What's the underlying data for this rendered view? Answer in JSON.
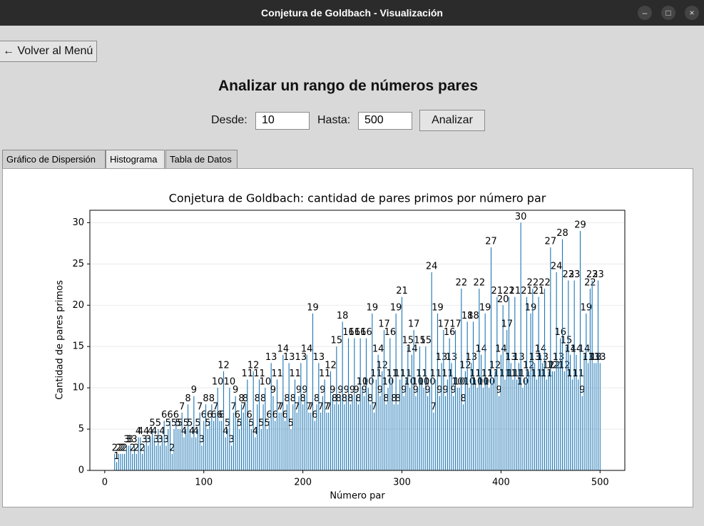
{
  "window": {
    "title": "Conjetura de Goldbach - Visualización"
  },
  "back_button": "← Volver al Menú",
  "heading": "Analizar un rango de números pares",
  "form": {
    "from_label": "Desde:",
    "from_value": "10",
    "to_label": "Hasta:",
    "to_value": "500",
    "button": "Analizar"
  },
  "tabs": [
    "Gráfico de Dispersión",
    "Histograma",
    "Tabla de Datos"
  ],
  "chart_data": {
    "type": "bar",
    "title": "Conjetura de Goldbach: cantidad de pares primos por número par",
    "xlabel": "Número par",
    "ylabel": "Cantidad de pares primos",
    "color": "#1f77b4",
    "grid": true,
    "xlim": [
      -15,
      525
    ],
    "xticks": [
      0,
      100,
      200,
      300,
      400,
      500
    ],
    "ylim": [
      0,
      31.5
    ],
    "yticks": [
      0,
      5,
      10,
      15,
      20,
      25,
      30
    ],
    "x": [
      10,
      12,
      14,
      16,
      18,
      20,
      22,
      24,
      26,
      28,
      30,
      32,
      34,
      36,
      38,
      40,
      42,
      44,
      46,
      48,
      50,
      52,
      54,
      56,
      58,
      60,
      62,
      64,
      66,
      68,
      70,
      72,
      74,
      76,
      78,
      80,
      82,
      84,
      86,
      88,
      90,
      92,
      94,
      96,
      98,
      100,
      102,
      104,
      106,
      108,
      110,
      112,
      114,
      116,
      118,
      120,
      122,
      124,
      126,
      128,
      130,
      132,
      134,
      136,
      138,
      140,
      142,
      144,
      146,
      148,
      150,
      152,
      154,
      156,
      158,
      160,
      162,
      164,
      166,
      168,
      170,
      172,
      174,
      176,
      178,
      180,
      182,
      184,
      186,
      188,
      190,
      192,
      194,
      196,
      198,
      200,
      202,
      204,
      206,
      208,
      210,
      212,
      214,
      216,
      218,
      220,
      222,
      224,
      226,
      228,
      230,
      232,
      234,
      236,
      238,
      240,
      242,
      244,
      246,
      248,
      250,
      252,
      254,
      256,
      258,
      260,
      262,
      264,
      266,
      268,
      270,
      272,
      274,
      276,
      278,
      280,
      282,
      284,
      286,
      288,
      290,
      292,
      294,
      296,
      298,
      300,
      302,
      304,
      306,
      308,
      310,
      312,
      314,
      316,
      318,
      320,
      322,
      324,
      326,
      328,
      330,
      332,
      334,
      336,
      338,
      340,
      342,
      344,
      346,
      348,
      350,
      352,
      354,
      356,
      358,
      360,
      362,
      364,
      366,
      368,
      370,
      372,
      374,
      376,
      378,
      380,
      382,
      384,
      386,
      388,
      390,
      392,
      394,
      396,
      398,
      400,
      402,
      404,
      406,
      408,
      410,
      412,
      414,
      416,
      418,
      420,
      422,
      424,
      426,
      428,
      430,
      432,
      434,
      436,
      438,
      440,
      442,
      444,
      446,
      448,
      450,
      452,
      454,
      456,
      458,
      460,
      462,
      464,
      466,
      468,
      470,
      472,
      474,
      476,
      478,
      480,
      482,
      484,
      486,
      488,
      490,
      492,
      494,
      496,
      498,
      500
    ],
    "values": [
      2,
      1,
      2,
      2,
      2,
      2,
      3,
      3,
      3,
      2,
      3,
      2,
      4,
      4,
      2,
      3,
      4,
      3,
      4,
      5,
      4,
      3,
      5,
      3,
      4,
      6,
      3,
      5,
      6,
      2,
      5,
      6,
      5,
      5,
      7,
      4,
      5,
      8,
      5,
      4,
      9,
      4,
      5,
      7,
      3,
      6,
      8,
      5,
      6,
      8,
      6,
      7,
      10,
      6,
      6,
      12,
      4,
      5,
      10,
      3,
      7,
      9,
      6,
      5,
      8,
      7,
      8,
      11,
      6,
      5,
      12,
      4,
      8,
      11,
      5,
      8,
      10,
      5,
      6,
      13,
      9,
      6,
      11,
      7,
      7,
      14,
      6,
      8,
      13,
      5,
      8,
      11,
      7,
      9,
      13,
      8,
      9,
      14,
      7,
      7,
      19,
      6,
      8,
      13,
      7,
      9,
      11,
      7,
      7,
      12,
      9,
      8,
      15,
      8,
      9,
      18,
      8,
      9,
      16,
      8,
      9,
      16,
      9,
      8,
      16,
      10,
      9,
      16,
      10,
      8,
      19,
      7,
      11,
      14,
      9,
      12,
      17,
      8,
      10,
      16,
      11,
      8,
      19,
      8,
      11,
      21,
      9,
      11,
      15,
      10,
      14,
      17,
      9,
      10,
      15,
      11,
      10,
      15,
      9,
      10,
      24,
      7,
      11,
      19,
      9,
      13,
      17,
      9,
      11,
      16,
      13,
      9,
      17,
      10,
      10,
      22,
      8,
      12,
      18,
      10,
      13,
      18,
      11,
      10,
      22,
      14,
      10,
      19,
      11,
      10,
      27,
      11,
      12,
      21,
      9,
      14,
      20,
      11,
      17,
      21,
      13,
      11,
      21,
      11,
      13,
      30,
      10,
      11,
      21,
      12,
      19,
      22,
      13,
      11,
      21,
      14,
      13,
      22,
      11,
      12,
      27,
      12,
      12,
      24,
      13,
      16,
      28,
      12,
      15,
      23,
      14,
      11,
      23,
      14,
      11,
      29,
      9,
      14,
      19,
      13,
      22,
      23,
      13,
      13,
      23,
      13
    ]
  }
}
